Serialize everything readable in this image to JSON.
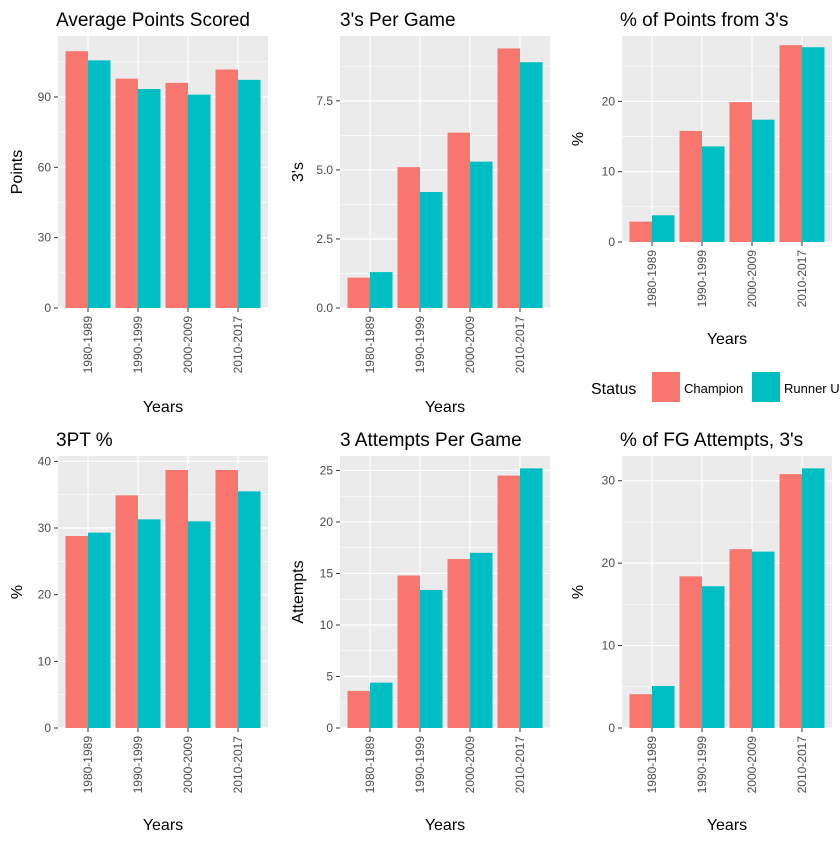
{
  "colors": {
    "panel_background": "#ebebeb",
    "grid_major": "#ffffff",
    "tick_text": "#4d4d4d",
    "Champion": "#f8766d",
    "Runner Up": "#00bfc4"
  },
  "legend": {
    "title": "Status",
    "placement": "right, between rows",
    "entries": [
      "Champion",
      "Runner Up"
    ]
  },
  "chart_data": [
    {
      "type": "bar",
      "title": "Average Points Scored",
      "xlabel": "Years",
      "ylabel": "Points",
      "categories": [
        "1980-1989",
        "1990-1999",
        "2000-2009",
        "2010-2017"
      ],
      "series": [
        {
          "name": "Champion",
          "values": [
            109.5,
            97.8,
            96.0,
            101.7
          ]
        },
        {
          "name": "Runner Up",
          "values": [
            105.6,
            93.4,
            91.0,
            97.3
          ]
        }
      ],
      "ylim": [
        0,
        116
      ],
      "yticks": [
        0,
        30,
        60,
        90
      ],
      "grid": true
    },
    {
      "type": "bar",
      "title": "3's Per Game",
      "xlabel": "Years",
      "ylabel": "3's",
      "categories": [
        "1980-1989",
        "1990-1999",
        "2000-2009",
        "2010-2017"
      ],
      "series": [
        {
          "name": "Champion",
          "values": [
            1.1,
            5.1,
            6.35,
            9.4
          ]
        },
        {
          "name": "Runner Up",
          "values": [
            1.3,
            4.2,
            5.3,
            8.9
          ]
        }
      ],
      "ylim": [
        0,
        9.85
      ],
      "yticks": [
        0.0,
        2.5,
        5.0,
        7.5
      ],
      "ytick_labels": [
        "0.0",
        "2.5",
        "5.0",
        "7.5"
      ],
      "grid": true
    },
    {
      "type": "bar",
      "title": "% of Points from 3's",
      "xlabel": "Years",
      "ylabel": "%",
      "categories": [
        "1980-1989",
        "1990-1999",
        "2000-2009",
        "2010-2017"
      ],
      "series": [
        {
          "name": "Champion",
          "values": [
            2.9,
            15.8,
            19.9,
            28.0
          ]
        },
        {
          "name": "Runner Up",
          "values": [
            3.8,
            13.6,
            17.4,
            27.7
          ]
        }
      ],
      "ylim": [
        0,
        29.3
      ],
      "yticks": [
        0,
        10,
        20
      ],
      "grid": true
    },
    {
      "type": "bar",
      "title": "3PT %",
      "xlabel": "Years",
      "ylabel": "%",
      "categories": [
        "1980-1989",
        "1990-1999",
        "2000-2009",
        "2010-2017"
      ],
      "series": [
        {
          "name": "Champion",
          "values": [
            28.8,
            34.9,
            38.7,
            38.7
          ]
        },
        {
          "name": "Runner Up",
          "values": [
            29.3,
            31.3,
            31.0,
            35.5
          ]
        }
      ],
      "ylim": [
        0,
        40.8
      ],
      "yticks": [
        0,
        10,
        20,
        30,
        40
      ],
      "grid": true
    },
    {
      "type": "bar",
      "title": "3 Attempts Per Game",
      "xlabel": "Years",
      "ylabel": "Attempts",
      "categories": [
        "1980-1989",
        "1990-1999",
        "2000-2009",
        "2010-2017"
      ],
      "series": [
        {
          "name": "Champion",
          "values": [
            3.6,
            14.8,
            16.4,
            24.5
          ]
        },
        {
          "name": "Runner Up",
          "values": [
            4.4,
            13.4,
            17.0,
            25.2
          ]
        }
      ],
      "ylim": [
        0,
        26.4
      ],
      "yticks": [
        0,
        5,
        10,
        15,
        20,
        25
      ],
      "grid": true
    },
    {
      "type": "bar",
      "title": "% of FG Attempts, 3's",
      "xlabel": "Years",
      "ylabel": "%",
      "categories": [
        "1980-1989",
        "1990-1999",
        "2000-2009",
        "2010-2017"
      ],
      "series": [
        {
          "name": "Champion",
          "values": [
            4.1,
            18.4,
            21.7,
            30.8
          ]
        },
        {
          "name": "Runner Up",
          "values": [
            5.1,
            17.2,
            21.4,
            31.5
          ]
        }
      ],
      "ylim": [
        0,
        33.0
      ],
      "yticks": [
        0,
        10,
        20,
        30
      ],
      "grid": true
    }
  ]
}
